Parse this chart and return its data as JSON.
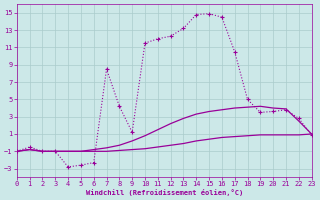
{
  "background_color": "#cce8e8",
  "grid_color": "#aacccc",
  "line_color": "#990099",
  "xlabel": "Windchill (Refroidissement éolien,°C)",
  "x_ticks": [
    0,
    1,
    2,
    3,
    4,
    5,
    6,
    7,
    8,
    9,
    10,
    11,
    12,
    13,
    14,
    15,
    16,
    17,
    18,
    19,
    20,
    21,
    22,
    23
  ],
  "y_ticks": [
    -3,
    -1,
    1,
    3,
    5,
    7,
    9,
    11,
    13,
    15
  ],
  "xlim": [
    0,
    23
  ],
  "ylim": [
    -4,
    16
  ],
  "curve1_x": [
    0,
    1,
    2,
    3,
    4,
    5,
    6,
    7,
    8,
    9,
    10,
    11,
    12,
    13,
    14,
    15,
    16,
    17,
    18,
    19,
    20,
    21,
    22,
    23
  ],
  "curve1_y": [
    -1.0,
    -0.5,
    -1.0,
    -1.0,
    -2.8,
    -2.6,
    -2.3,
    8.5,
    4.2,
    1.2,
    11.5,
    12.0,
    12.3,
    13.2,
    14.8,
    14.9,
    14.5,
    10.5,
    5.0,
    3.5,
    3.6,
    3.8,
    2.8,
    0.9
  ],
  "curve2_x": [
    0,
    1,
    2,
    3,
    4,
    5,
    6,
    7,
    8,
    9,
    10,
    11,
    12,
    13,
    14,
    15,
    16,
    17,
    18,
    19,
    20,
    21,
    22,
    23
  ],
  "curve2_y": [
    -1.0,
    -0.8,
    -1.0,
    -1.0,
    -1.0,
    -1.0,
    -1.0,
    -1.0,
    -0.9,
    -0.8,
    -0.7,
    -0.5,
    -0.3,
    -0.1,
    0.2,
    0.4,
    0.6,
    0.7,
    0.8,
    0.9,
    0.9,
    0.9,
    0.9,
    1.0
  ],
  "curve3_x": [
    0,
    1,
    2,
    3,
    4,
    5,
    6,
    7,
    8,
    9,
    10,
    11,
    12,
    13,
    14,
    15,
    16,
    17,
    18,
    19,
    20,
    21,
    22,
    23
  ],
  "curve3_y": [
    -1.0,
    -0.8,
    -1.0,
    -1.0,
    -1.0,
    -1.0,
    -0.8,
    -0.6,
    -0.3,
    0.2,
    0.8,
    1.5,
    2.2,
    2.8,
    3.3,
    3.6,
    3.8,
    4.0,
    4.1,
    4.2,
    4.0,
    3.9,
    2.5,
    1.0
  ]
}
